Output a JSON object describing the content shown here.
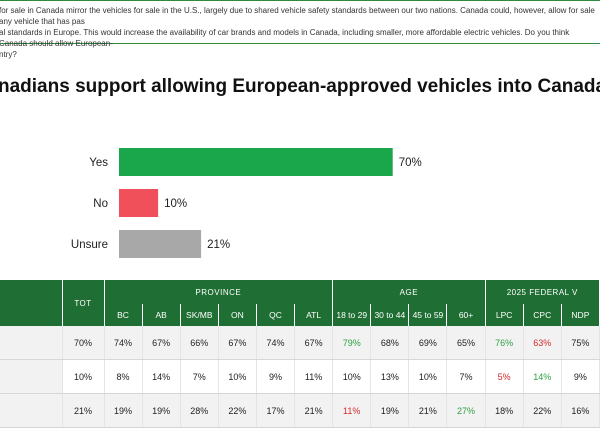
{
  "question": "for sale in Canada mirror the vehicles for sale in the U.S., largely due to shared vehicle safety standards between our two nations. Canada could, however, allow for sale any vehicle that has pas\nal standards in Europe. This would increase the availability of car brands and models in Canada, including smaller, more affordable electric vehicles. Do you think Canada should allow European-\nntry?",
  "headline": "nadians support allowing European-approved vehicles into Canada",
  "chart_data": {
    "type": "bar",
    "orientation": "horizontal",
    "categories": [
      "Yes",
      "No",
      "Unsure"
    ],
    "values": [
      70,
      10,
      21
    ],
    "value_labels": [
      "70%",
      "10%",
      "21%"
    ],
    "colors": [
      "#1aa64a",
      "#f0505a",
      "#a8a8a8"
    ],
    "xlim": [
      0,
      100
    ],
    "grid": false
  },
  "table": {
    "tot_label": "TOT",
    "groups": [
      {
        "label": "PROVINCE",
        "span": 6
      },
      {
        "label": "AGE",
        "span": 4
      },
      {
        "label": "2025 FEDERAL V",
        "span": 3
      }
    ],
    "columns": [
      "BC",
      "AB",
      "SK/MB",
      "ON",
      "QC",
      "ATL",
      "18 to 29",
      "30 to 44",
      "45 to 59",
      "60+",
      "LPC",
      "CPC",
      "NDP"
    ],
    "rows": [
      {
        "tot": "70%",
        "cells": [
          {
            "v": "74%"
          },
          {
            "v": "67%"
          },
          {
            "v": "66%"
          },
          {
            "v": "67%"
          },
          {
            "v": "74%"
          },
          {
            "v": "67%"
          },
          {
            "v": "79%",
            "c": "pos"
          },
          {
            "v": "68%"
          },
          {
            "v": "69%"
          },
          {
            "v": "65%"
          },
          {
            "v": "76%",
            "c": "pos"
          },
          {
            "v": "63%",
            "c": "neg"
          },
          {
            "v": "75%"
          }
        ]
      },
      {
        "tot": "10%",
        "cells": [
          {
            "v": "8%"
          },
          {
            "v": "14%"
          },
          {
            "v": "7%"
          },
          {
            "v": "10%"
          },
          {
            "v": "9%"
          },
          {
            "v": "11%"
          },
          {
            "v": "10%"
          },
          {
            "v": "13%"
          },
          {
            "v": "10%"
          },
          {
            "v": "7%"
          },
          {
            "v": "5%",
            "c": "neg"
          },
          {
            "v": "14%",
            "c": "pos"
          },
          {
            "v": "9%"
          }
        ]
      },
      {
        "tot": "21%",
        "cells": [
          {
            "v": "19%"
          },
          {
            "v": "19%"
          },
          {
            "v": "28%"
          },
          {
            "v": "22%"
          },
          {
            "v": "17%"
          },
          {
            "v": "21%"
          },
          {
            "v": "11%",
            "c": "neg"
          },
          {
            "v": "19%"
          },
          {
            "v": "21%"
          },
          {
            "v": "27%",
            "c": "pos"
          },
          {
            "v": "18%"
          },
          {
            "v": "22%"
          },
          {
            "v": "16%"
          }
        ]
      }
    ]
  }
}
